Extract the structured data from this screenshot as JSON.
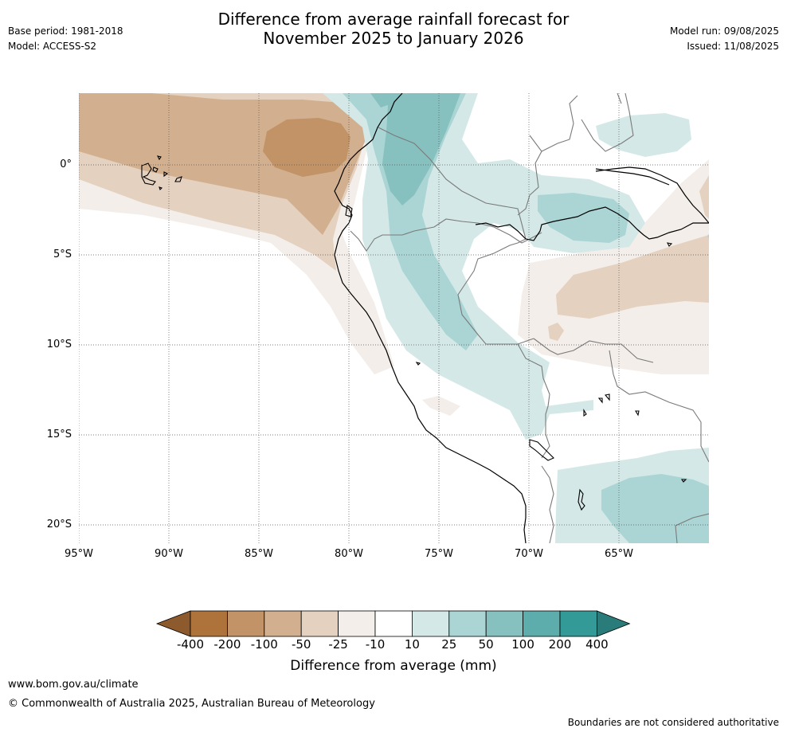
{
  "header": {
    "title_line1": "Difference from average rainfall forecast for",
    "title_line2": "November 2025 to January 2026",
    "base_period": "Base period: 1981-2018",
    "model": "Model: ACCESS-S2",
    "model_run": "Model run: 09/08/2025",
    "issued": "Issued: 11/08/2025"
  },
  "map": {
    "lat_labels": [
      "0°",
      "5°S",
      "10°S",
      "15°S",
      "20°S"
    ],
    "lon_labels": [
      "95°W",
      "90°W",
      "85°W",
      "80°W",
      "75°W",
      "70°W",
      "65°W"
    ],
    "extent": {
      "lon_min": -95,
      "lon_max": -60,
      "lat_min": -21,
      "lat_max": 4
    }
  },
  "colorbar": {
    "title": "Difference from average (mm)",
    "ticks": [
      "-400",
      "-200",
      "-100",
      "-50",
      "-25",
      "-10",
      "10",
      "25",
      "50",
      "100",
      "200",
      "400"
    ],
    "colors": [
      "#8c5a2c",
      "#ad733b",
      "#c19366",
      "#d2b08f",
      "#e4d1bf",
      "#f3eee9",
      "#ffffff",
      "#d4e9e7",
      "#aad5d4",
      "#86c1c0",
      "#5cadab",
      "#339a97",
      "#2a7c7a"
    ]
  },
  "footer": {
    "website": "www.bom.gov.au/climate",
    "copyright": "© Commonwealth of Australia 2025, Australian Bureau of Meteorology",
    "disclaimer": "Boundaries are not considered authoritative"
  }
}
